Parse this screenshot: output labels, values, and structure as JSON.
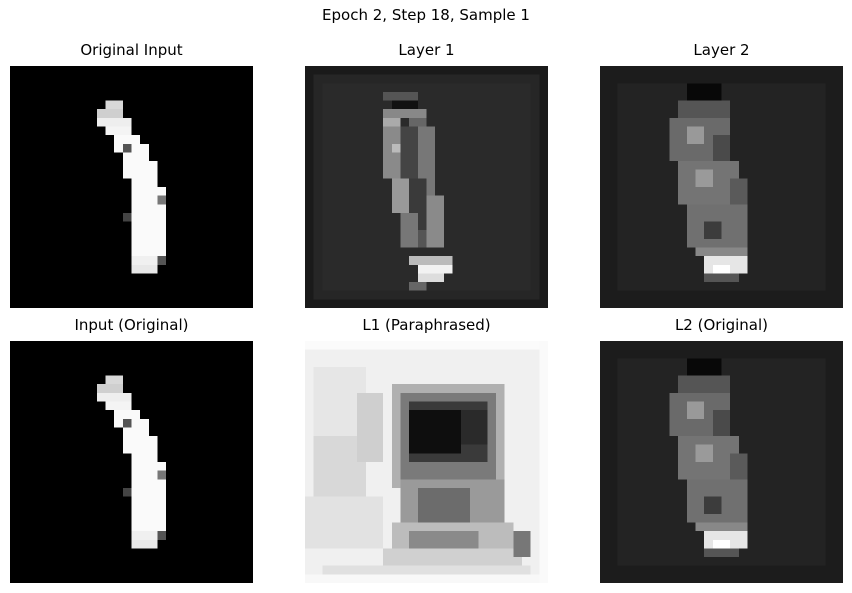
{
  "figure": {
    "title": "Epoch 2, Step 18, Sample 1"
  },
  "panels": [
    {
      "title": "Original Input"
    },
    {
      "title": "Layer 1"
    },
    {
      "title": "Layer 2"
    },
    {
      "title": "Input (Original)"
    },
    {
      "title": "L1 (Paraphrased)"
    },
    {
      "title": "L2 (Original)"
    }
  ]
}
